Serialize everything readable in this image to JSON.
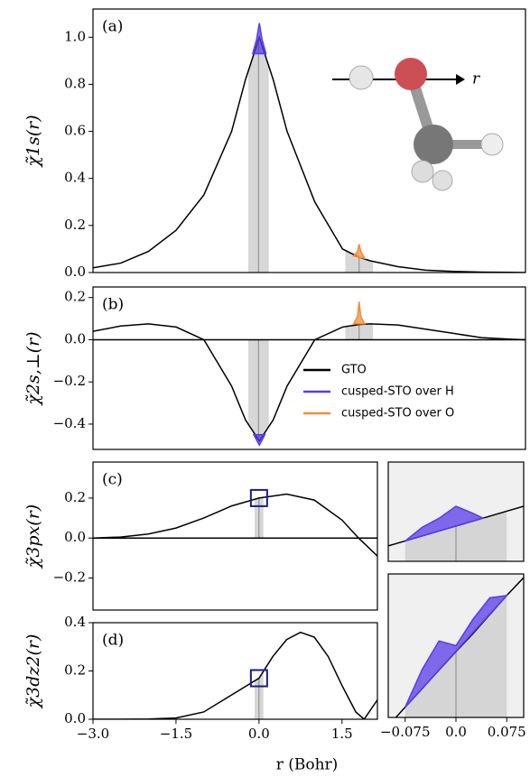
{
  "chart_data": [
    {
      "type": "line",
      "panel_label": "(a)",
      "ylabel": "χ̃1s(r)",
      "molecule_label": "r",
      "x": [
        -3,
        -2.5,
        -2,
        -1.5,
        -1,
        -0.5,
        -0.25,
        0,
        0.25,
        0.5,
        1,
        1.5,
        1.8,
        2,
        2.5,
        3,
        3.5,
        4,
        4.5,
        4.8
      ],
      "xlim": [
        -3,
        4.8
      ],
      "ylim": [
        0,
        1.12
      ],
      "yticks": [
        {
          "value": 0,
          "label": "0.0"
        },
        0.2,
        0.4,
        0.6,
        0.8,
        {
          "value": 1,
          "label": "1.0"
        }
      ],
      "shaded_regions": [
        [
          -0.2,
          0.17
        ],
        [
          1.55,
          2.05
        ]
      ],
      "series": [
        {
          "color": "#000000",
          "values": [
            0.02,
            0.04,
            0.09,
            0.18,
            0.33,
            0.6,
            0.82,
            1.0,
            0.82,
            0.6,
            0.3,
            0.1,
            0.065,
            0.05,
            0.025,
            0.01,
            0.005,
            0.002,
            0.001,
            0
          ]
        },
        {
          "color": "#5a3be8",
          "x": [
            -0.12,
            -0.05,
            0,
            0.05,
            0.12
          ],
          "values": [
            0.93,
            0.99,
            1.06,
            0.99,
            0.93
          ]
        },
        {
          "color": "#f28c38",
          "x": [
            1.7,
            1.77,
            1.8,
            1.83,
            1.9
          ],
          "values": [
            0.07,
            0.09,
            0.12,
            0.09,
            0.06
          ]
        }
      ]
    },
    {
      "type": "line",
      "panel_label": "(b)",
      "ylabel": "χ̃2s,⊥(r)",
      "zero_line": true,
      "legend": "lower right",
      "x": [
        -3,
        -2.5,
        -2,
        -1.5,
        -1,
        -0.5,
        -0.25,
        0,
        0.25,
        0.5,
        1,
        1.5,
        1.8,
        2,
        2.5,
        3,
        3.5,
        4,
        4.5,
        4.8
      ],
      "xlim": [
        -3,
        4.8
      ],
      "ylim": [
        -0.52,
        0.25
      ],
      "yticks": [
        0.2,
        {
          "value": 0,
          "label": "0.0"
        },
        {
          "value": -0.2,
          "label": "−0.2"
        },
        {
          "value": -0.4,
          "label": "−0.4"
        }
      ],
      "shaded_regions": [
        [
          -0.2,
          0.17
        ],
        [
          1.55,
          2.05
        ]
      ],
      "series": [
        {
          "name": "GTO",
          "color": "#000000",
          "values": [
            0.04,
            0.065,
            0.075,
            0.06,
            0.0,
            -0.22,
            -0.38,
            -0.48,
            -0.38,
            -0.22,
            0.0,
            0.06,
            0.072,
            0.075,
            0.07,
            0.05,
            0.03,
            0.01,
            0.003,
            0
          ]
        },
        {
          "name": "cusped-STO over H",
          "color": "#5a3be8",
          "x": [
            -0.1,
            -0.04,
            0,
            0.04,
            0.1
          ],
          "values": [
            -0.45,
            -0.48,
            -0.5,
            -0.48,
            -0.45
          ]
        },
        {
          "name": "cusped-STO over O",
          "color": "#f28c38",
          "x": [
            1.7,
            1.77,
            1.8,
            1.83,
            1.9
          ],
          "values": [
            0.075,
            0.11,
            0.18,
            0.11,
            0.075
          ]
        }
      ]
    },
    {
      "type": "line",
      "panel_label": "(c)",
      "ylabel": "χ̃3px(r)",
      "zero_line": true,
      "x": [
        -3,
        -2.5,
        -2,
        -1.5,
        -1,
        -0.5,
        0,
        0.5,
        1,
        1.5,
        1.8,
        2.14
      ],
      "xlim": [
        -3,
        2.14
      ],
      "ylim": [
        -0.36,
        0.38
      ],
      "yticks": [
        0.2,
        {
          "value": 0,
          "label": "0.0"
        },
        {
          "value": -0.2,
          "label": "−0.2"
        }
      ],
      "shaded_regions": [
        [
          -0.08,
          0.08
        ]
      ],
      "series": [
        {
          "color": "#000000",
          "values": [
            0,
            0.005,
            0.02,
            0.05,
            0.1,
            0.16,
            0.2,
            0.22,
            0.19,
            0.09,
            0,
            -0.09
          ]
        }
      ]
    },
    {
      "type": "line",
      "panel_label": "(d)",
      "ylabel": "χ̃3dz2(r)",
      "xlabel": "r (Bohr)",
      "x": [
        -3,
        -2.5,
        -2,
        -1.5,
        -1,
        -0.5,
        0,
        0.25,
        0.5,
        0.75,
        1,
        1.25,
        1.5,
        1.75,
        1.9,
        2.14
      ],
      "xlim": [
        -3,
        2.14
      ],
      "ylim": [
        0,
        0.4
      ],
      "xticks": [
        {
          "value": -3,
          "label": "−3.0"
        },
        {
          "value": -1.5,
          "label": "−1.5"
        },
        {
          "value": 0,
          "label": "0.0"
        },
        1.5
      ],
      "yticks": [
        {
          "value": 0,
          "label": "0.0"
        },
        0.2,
        0.4
      ],
      "shaded_regions": [
        [
          -0.08,
          0.08
        ]
      ],
      "series": [
        {
          "color": "#000000",
          "values": [
            0,
            0,
            0.001,
            0.005,
            0.03,
            0.1,
            0.17,
            0.26,
            0.33,
            0.36,
            0.34,
            0.26,
            0.14,
            0.03,
            0,
            0.08
          ]
        }
      ]
    },
    {
      "type": "line",
      "x": [
        -0.1,
        -0.075,
        -0.05,
        -0.025,
        0,
        0.025,
        0.05,
        0.075,
        0.1
      ],
      "xlim": [
        -0.1,
        0.1
      ],
      "ylim": [
        0.17,
        0.23
      ],
      "shaded_regions": [
        [
          -0.075,
          0.075
        ]
      ],
      "series": [
        {
          "color": "#000000",
          "values": [
            0.1793,
            0.1823,
            0.1853,
            0.1883,
            0.1913,
            0.1943,
            0.1973,
            0.2003,
            0.2033
          ]
        },
        {
          "color": "#5a3be8",
          "x": [
            -0.075,
            -0.05,
            -0.025,
            0,
            0.025,
            0.04
          ],
          "values": [
            0.1823,
            0.1905,
            0.196,
            0.2033,
            0.199,
            0.1961
          ]
        }
      ]
    },
    {
      "type": "line",
      "x": [
        -0.1,
        -0.075,
        -0.05,
        -0.025,
        0,
        0.025,
        0.05,
        0.075,
        0.1
      ],
      "xlim": [
        -0.1,
        0.1
      ],
      "ylim": [
        0.14,
        0.2
      ],
      "shaded_regions": [
        [
          -0.075,
          0.075
        ]
      ],
      "xticks": [
        {
          "value": -0.075,
          "label": "−0.075"
        },
        {
          "value": 0,
          "label": "0.0"
        },
        0.075
      ],
      "series": [
        {
          "color": "#000000",
          "values": [
            0.1365,
            0.1443,
            0.152,
            0.1598,
            0.1675,
            0.175,
            0.183,
            0.191,
            0.1985
          ]
        },
        {
          "color": "#5a3be8",
          "x": [
            -0.075,
            -0.05,
            -0.025,
            0,
            0.025,
            0.05,
            0.075
          ],
          "values": [
            0.1443,
            0.16,
            0.172,
            0.17,
            0.181,
            0.19,
            0.191
          ]
        }
      ]
    }
  ]
}
